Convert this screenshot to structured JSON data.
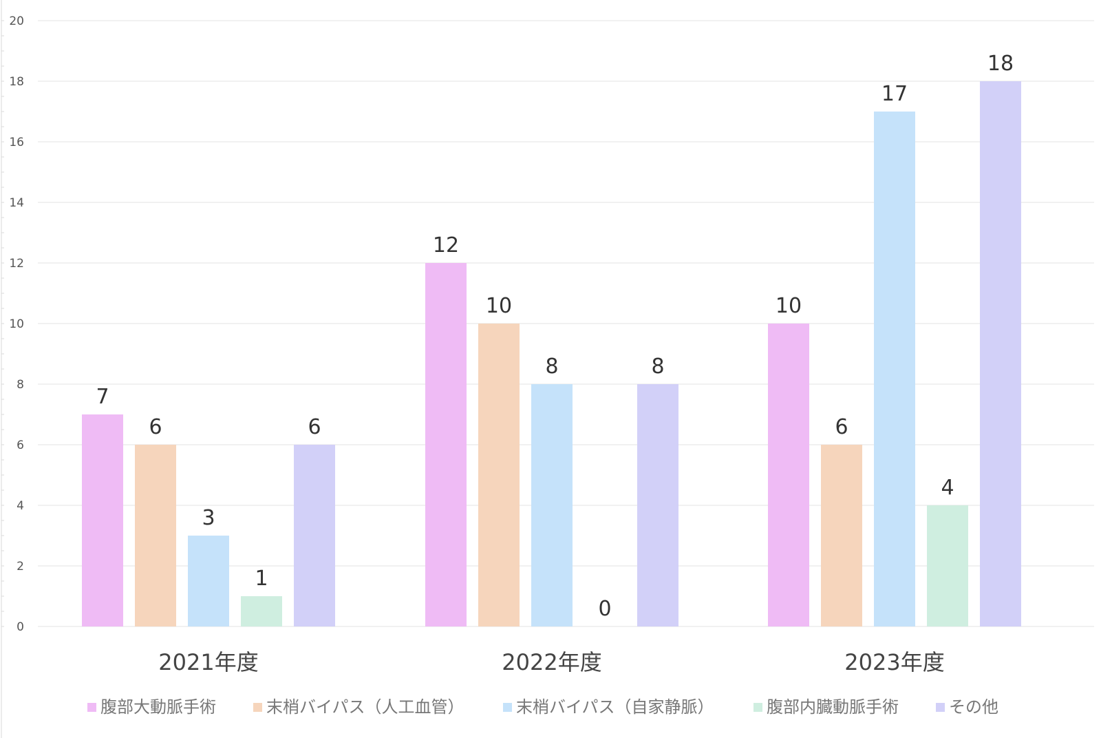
{
  "chart_data": {
    "type": "bar",
    "title": "",
    "xlabel": "",
    "ylabel": "",
    "ylim": [
      0,
      20
    ],
    "yticks": [
      "0",
      "2",
      "4",
      "6",
      "8",
      "10",
      "12",
      "14",
      "16",
      "18",
      "20"
    ],
    "grid": true,
    "legend_position": "bottom",
    "categories": [
      "2021年度",
      "2022年度",
      "2023年度"
    ],
    "series": [
      {
        "name": "腹部大動脈手術",
        "color": "#EFBBF5",
        "values": [
          7,
          12,
          10
        ]
      },
      {
        "name": "末梢バイパス（人工血管）",
        "color": "#F6D5BC",
        "values": [
          6,
          10,
          6
        ]
      },
      {
        "name": "末梢バイパス（自家静脈）",
        "color": "#C5E2FA",
        "values": [
          3,
          8,
          17
        ]
      },
      {
        "name": "腹部内臓動脈手術",
        "color": "#CFEEE0",
        "values": [
          1,
          0,
          4
        ]
      },
      {
        "name": "その他",
        "color": "#D2D0F8",
        "values": [
          6,
          8,
          18
        ]
      }
    ]
  }
}
